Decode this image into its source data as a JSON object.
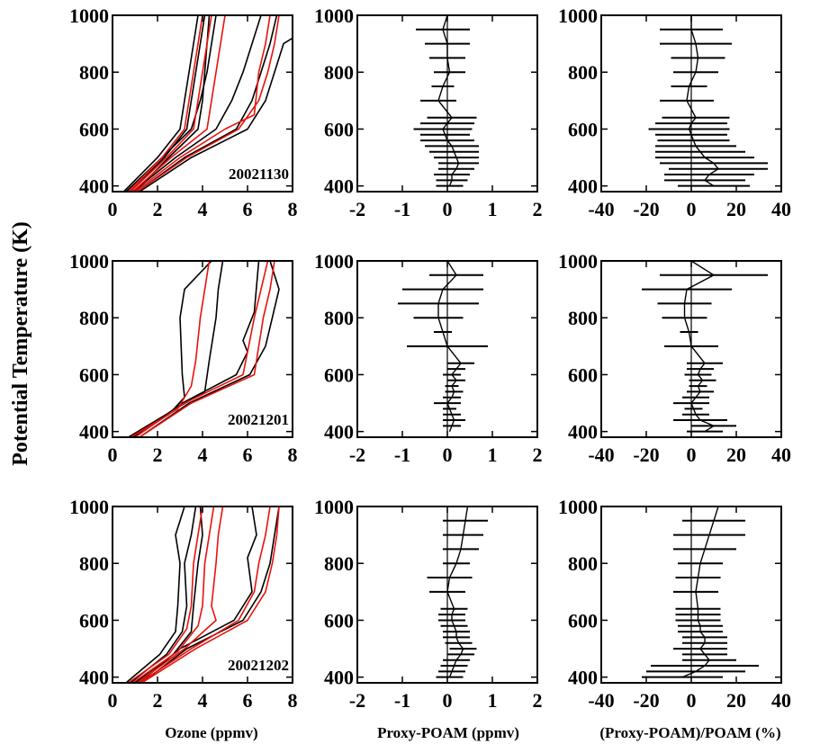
{
  "figure": {
    "ylabel": "Potential Temperature (K)",
    "col_xlabels": [
      "Ozone (ppmv)",
      "Proxy-POAM (ppmv)",
      "(Proxy-POAM)/POAM (%)"
    ],
    "dates": [
      "20021130",
      "20021201",
      "20021202"
    ],
    "colors": {
      "poam_profile": "#000000",
      "proxy_profile": "#e8120c",
      "axis": "#000000"
    }
  },
  "chart_data": [
    {
      "type": "line",
      "row": 0,
      "col": 0,
      "annotation": "20021130",
      "xlabel": "",
      "ylabel": "",
      "xlim": [
        0,
        8
      ],
      "ylim": [
        380,
        1000
      ],
      "xticks": [
        0,
        2,
        4,
        6,
        8
      ],
      "yticks": [
        400,
        600,
        800,
        1000
      ],
      "series": [
        {
          "group": "poam",
          "x": [
            0.5,
            2.0,
            3.0,
            3.2,
            3.4,
            3.6,
            3.8
          ],
          "y": [
            380,
            500,
            600,
            700,
            800,
            900,
            1000
          ]
        },
        {
          "group": "poam",
          "x": [
            0.8,
            2.3,
            3.3,
            3.5,
            3.7,
            3.9,
            4.1
          ],
          "y": [
            380,
            500,
            600,
            700,
            800,
            900,
            1000
          ]
        },
        {
          "group": "poam",
          "x": [
            1.0,
            2.5,
            3.8,
            4.0,
            4.1,
            4.2,
            4.3
          ],
          "y": [
            380,
            500,
            600,
            700,
            800,
            900,
            1000
          ]
        },
        {
          "group": "poam",
          "x": [
            0.6,
            2.2,
            3.5,
            3.9,
            4.2,
            4.4,
            4.6
          ],
          "y": [
            380,
            500,
            600,
            700,
            800,
            900,
            1000
          ]
        },
        {
          "group": "poam",
          "x": [
            0.9,
            2.8,
            4.6,
            5.3,
            5.8,
            6.2,
            6.6
          ],
          "y": [
            380,
            500,
            600,
            700,
            800,
            900,
            1000
          ]
        },
        {
          "group": "poam",
          "x": [
            1.1,
            3.2,
            5.5,
            6.2,
            6.6,
            7.0,
            7.3
          ],
          "y": [
            380,
            500,
            600,
            700,
            800,
            900,
            1000
          ]
        },
        {
          "group": "poam",
          "x": [
            1.2,
            3.5,
            6.0,
            6.8,
            7.2,
            7.6,
            8.0
          ],
          "y": [
            380,
            500,
            600,
            700,
            800,
            900,
            920
          ]
        },
        {
          "group": "proxy",
          "x": [
            0.7,
            2.2,
            3.2,
            3.4,
            3.6,
            3.8,
            4.0
          ],
          "y": [
            380,
            500,
            600,
            700,
            800,
            900,
            1000
          ]
        },
        {
          "group": "proxy",
          "x": [
            0.8,
            2.4,
            3.6,
            3.8,
            4.0,
            4.2,
            4.4
          ],
          "y": [
            380,
            500,
            600,
            700,
            800,
            900,
            1000
          ]
        },
        {
          "group": "proxy",
          "x": [
            0.9,
            2.6,
            4.2,
            4.4,
            4.6,
            4.8,
            5.0
          ],
          "y": [
            380,
            500,
            600,
            700,
            800,
            900,
            1000
          ]
        },
        {
          "group": "proxy",
          "x": [
            1.0,
            3.0,
            5.0,
            6.3,
            6.5,
            6.8,
            7.0
          ],
          "y": [
            380,
            500,
            600,
            650,
            800,
            900,
            1000
          ]
        },
        {
          "group": "proxy",
          "x": [
            1.1,
            3.3,
            5.6,
            6.5,
            6.9,
            7.2,
            7.4
          ],
          "y": [
            380,
            500,
            600,
            700,
            800,
            900,
            1000
          ]
        }
      ]
    },
    {
      "type": "errorbar",
      "row": 0,
      "col": 1,
      "xlim": [
        -2,
        2
      ],
      "ylim": [
        380,
        1000
      ],
      "xticks": [
        -2,
        -1,
        0,
        1,
        2
      ],
      "yticks": [
        400,
        600,
        800,
        1000
      ],
      "y": [
        400,
        420,
        440,
        460,
        480,
        500,
        520,
        540,
        560,
        580,
        600,
        620,
        640,
        700,
        750,
        800,
        850,
        900,
        950,
        1000
      ],
      "x": [
        0.05,
        0.1,
        0.1,
        0.2,
        0.25,
        0.2,
        0.15,
        0.1,
        0.0,
        -0.05,
        -0.1,
        0.0,
        0.1,
        -0.2,
        -0.1,
        0.05,
        0.0,
        0.0,
        -0.1,
        0.0
      ],
      "err": [
        0.3,
        0.35,
        0.4,
        0.4,
        0.45,
        0.5,
        0.55,
        0.6,
        0.6,
        0.55,
        0.65,
        0.6,
        0.55,
        0.4,
        0.25,
        0.35,
        0.4,
        0.5,
        0.6,
        0.0
      ]
    },
    {
      "type": "errorbar",
      "row": 0,
      "col": 2,
      "xlim": [
        -40,
        40
      ],
      "ylim": [
        380,
        1000
      ],
      "xticks": [
        -40,
        -20,
        0,
        20,
        40
      ],
      "yticks": [
        400,
        600,
        800,
        1000
      ],
      "y": [
        400,
        420,
        440,
        460,
        480,
        500,
        520,
        540,
        560,
        580,
        600,
        620,
        640,
        700,
        750,
        800,
        850,
        900,
        950,
        1000
      ],
      "x": [
        10,
        6,
        8,
        12,
        10,
        6,
        4,
        2,
        1,
        0,
        -1,
        0,
        2,
        -2,
        -1,
        2,
        3,
        2,
        0,
        0
      ],
      "err": [
        16,
        18,
        20,
        22,
        24,
        22,
        20,
        18,
        16,
        16,
        18,
        16,
        15,
        12,
        8,
        10,
        12,
        16,
        14,
        0
      ]
    },
    {
      "type": "line",
      "row": 1,
      "col": 0,
      "annotation": "20021201",
      "xlabel": "",
      "ylabel": "",
      "xlim": [
        0,
        8
      ],
      "ylim": [
        380,
        1000
      ],
      "xticks": [
        0,
        2,
        4,
        6,
        8
      ],
      "yticks": [
        400,
        600,
        800,
        1000
      ],
      "series": [
        {
          "group": "poam",
          "x": [
            0.9,
            2.5,
            3.2,
            3.1,
            3.0,
            3.2,
            4.4
          ],
          "y": [
            380,
            460,
            520,
            600,
            800,
            900,
            1000
          ]
        },
        {
          "group": "poam",
          "x": [
            0.7,
            2.8,
            4.1,
            4.3,
            4.6,
            4.7,
            4.9
          ],
          "y": [
            380,
            480,
            540,
            650,
            800,
            900,
            1000
          ]
        },
        {
          "group": "poam",
          "x": [
            1.0,
            3.1,
            5.5,
            6.0,
            5.8,
            6.3,
            6.5
          ],
          "y": [
            380,
            500,
            600,
            680,
            720,
            820,
            1000
          ]
        },
        {
          "group": "poam",
          "x": [
            1.2,
            3.4,
            6.1,
            6.8,
            7.1,
            7.4,
            7.0
          ],
          "y": [
            380,
            500,
            600,
            700,
            800,
            900,
            1000
          ]
        },
        {
          "group": "proxy",
          "x": [
            0.8,
            2.9,
            3.5,
            3.7,
            3.9,
            4.1,
            4.3
          ],
          "y": [
            380,
            480,
            560,
            650,
            800,
            900,
            1000
          ]
        },
        {
          "group": "proxy",
          "x": [
            1.0,
            3.2,
            5.8,
            6.0,
            6.3,
            6.6,
            6.9
          ],
          "y": [
            380,
            500,
            600,
            680,
            800,
            900,
            1000
          ]
        },
        {
          "group": "proxy",
          "x": [
            1.2,
            3.5,
            6.3,
            6.5,
            6.7,
            7.0,
            7.2
          ],
          "y": [
            380,
            500,
            600,
            700,
            800,
            900,
            1000
          ]
        }
      ]
    },
    {
      "type": "errorbar",
      "row": 1,
      "col": 1,
      "xlim": [
        -2,
        2
      ],
      "ylim": [
        380,
        1000
      ],
      "xticks": [
        -2,
        -1,
        0,
        1,
        2
      ],
      "yticks": [
        400,
        600,
        800,
        1000
      ],
      "y": [
        400,
        420,
        440,
        460,
        480,
        500,
        520,
        540,
        560,
        580,
        600,
        620,
        640,
        700,
        750,
        800,
        850,
        900,
        950,
        1000
      ],
      "x": [
        0.05,
        0.1,
        0.15,
        0.1,
        0.05,
        0.0,
        0.1,
        0.15,
        0.1,
        0.2,
        0.1,
        0.2,
        0.3,
        0.0,
        -0.1,
        -0.2,
        -0.2,
        -0.1,
        0.2,
        0.0
      ],
      "err": [
        0.0,
        0.2,
        0.25,
        0.2,
        0.15,
        0.3,
        0.2,
        0.2,
        0.15,
        0.2,
        0.2,
        0.2,
        0.3,
        0.9,
        0.2,
        0.55,
        0.9,
        0.9,
        0.6,
        0.0
      ]
    },
    {
      "type": "errorbar",
      "row": 1,
      "col": 2,
      "xlim": [
        -40,
        40
      ],
      "ylim": [
        380,
        1000
      ],
      "xticks": [
        -40,
        -20,
        0,
        20,
        40
      ],
      "yticks": [
        400,
        600,
        800,
        1000
      ],
      "y": [
        400,
        420,
        440,
        460,
        480,
        500,
        520,
        540,
        560,
        580,
        600,
        620,
        640,
        700,
        750,
        800,
        850,
        900,
        950,
        1000
      ],
      "x": [
        6,
        10,
        4,
        2,
        1,
        0,
        2,
        4,
        3,
        5,
        3,
        4,
        6,
        0,
        -1,
        -3,
        -3,
        -2,
        10,
        0
      ],
      "err": [
        8,
        10,
        12,
        6,
        4,
        8,
        6,
        6,
        4,
        6,
        6,
        6,
        8,
        12,
        4,
        10,
        12,
        20,
        24,
        0
      ]
    },
    {
      "type": "line",
      "row": 2,
      "col": 0,
      "annotation": "20021202",
      "xlabel": "Ozone (ppmv)",
      "ylabel": "",
      "xlim": [
        0,
        8
      ],
      "ylim": [
        380,
        1000
      ],
      "xticks": [
        0,
        2,
        4,
        6,
        8
      ],
      "yticks": [
        400,
        600,
        800,
        1000
      ],
      "series": [
        {
          "group": "poam",
          "x": [
            0.6,
            2.1,
            2.8,
            2.9,
            3.0,
            2.8,
            3.2
          ],
          "y": [
            380,
            480,
            560,
            650,
            800,
            900,
            1000
          ]
        },
        {
          "group": "poam",
          "x": [
            0.8,
            2.4,
            3.1,
            3.3,
            3.2,
            3.5,
            3.7
          ],
          "y": [
            380,
            480,
            560,
            650,
            800,
            900,
            1000
          ]
        },
        {
          "group": "poam",
          "x": [
            1.0,
            2.7,
            3.5,
            3.6,
            3.8,
            4.0,
            3.9
          ],
          "y": [
            380,
            480,
            560,
            650,
            800,
            900,
            1000
          ]
        },
        {
          "group": "poam",
          "x": [
            1.2,
            3.0,
            5.4,
            6.2,
            6.0,
            6.4,
            6.2
          ],
          "y": [
            380,
            500,
            600,
            700,
            820,
            900,
            1000
          ]
        },
        {
          "group": "poam",
          "x": [
            1.3,
            3.3,
            5.8,
            6.6,
            7.0,
            7.2,
            7.4
          ],
          "y": [
            380,
            500,
            600,
            700,
            800,
            900,
            1000
          ]
        },
        {
          "group": "proxy",
          "x": [
            0.7,
            2.5,
            3.3,
            3.5,
            3.6,
            3.8,
            4.0
          ],
          "y": [
            380,
            480,
            570,
            650,
            800,
            900,
            1000
          ]
        },
        {
          "group": "proxy",
          "x": [
            0.9,
            2.9,
            3.8,
            4.0,
            4.1,
            4.3,
            4.5
          ],
          "y": [
            380,
            490,
            580,
            650,
            800,
            900,
            1000
          ]
        },
        {
          "group": "proxy",
          "x": [
            1.1,
            3.2,
            4.6,
            4.4,
            4.6,
            4.7,
            4.9
          ],
          "y": [
            380,
            500,
            600,
            650,
            800,
            900,
            1000
          ]
        },
        {
          "group": "proxy",
          "x": [
            1.2,
            3.5,
            5.6,
            6.3,
            6.5,
            6.8,
            7.0
          ],
          "y": [
            380,
            500,
            600,
            700,
            800,
            900,
            1000
          ]
        },
        {
          "group": "proxy",
          "x": [
            1.3,
            3.7,
            6.0,
            6.8,
            7.1,
            7.3,
            7.4
          ],
          "y": [
            380,
            500,
            600,
            700,
            800,
            900,
            1000
          ]
        }
      ]
    },
    {
      "type": "errorbar",
      "row": 2,
      "col": 1,
      "xlabel": "Proxy-POAM (ppmv)",
      "xlim": [
        -2,
        2
      ],
      "ylim": [
        380,
        1000
      ],
      "xticks": [
        -2,
        -1,
        0,
        1,
        2
      ],
      "yticks": [
        400,
        600,
        800,
        1000
      ],
      "y": [
        400,
        420,
        440,
        460,
        480,
        500,
        520,
        540,
        560,
        580,
        600,
        620,
        640,
        700,
        750,
        800,
        850,
        900,
        950,
        1000
      ],
      "x": [
        0.05,
        0.1,
        0.15,
        0.2,
        0.3,
        0.35,
        0.25,
        0.2,
        0.2,
        0.15,
        0.1,
        0.1,
        0.15,
        0.0,
        0.05,
        0.2,
        0.3,
        0.35,
        0.4,
        0.45
      ],
      "err": [
        0.3,
        0.3,
        0.3,
        0.3,
        0.3,
        0.3,
        0.3,
        0.3,
        0.3,
        0.3,
        0.3,
        0.3,
        0.3,
        0.4,
        0.5,
        0.3,
        0.4,
        0.45,
        0.5,
        0.0
      ]
    },
    {
      "type": "errorbar",
      "row": 2,
      "col": 2,
      "xlabel": "(Proxy-POAM)/POAM (%)",
      "xlim": [
        -40,
        40
      ],
      "ylim": [
        380,
        1000
      ],
      "xticks": [
        -40,
        -20,
        0,
        20,
        40
      ],
      "yticks": [
        400,
        600,
        800,
        1000
      ],
      "y": [
        400,
        420,
        440,
        460,
        480,
        500,
        520,
        540,
        560,
        580,
        600,
        620,
        640,
        700,
        750,
        800,
        850,
        900,
        950,
        1000
      ],
      "x": [
        -4,
        2,
        6,
        8,
        6,
        4,
        6,
        6,
        4,
        4,
        3,
        3,
        3,
        2,
        3,
        4,
        6,
        8,
        10,
        12
      ],
      "err": [
        18,
        22,
        24,
        12,
        10,
        12,
        10,
        10,
        10,
        10,
        10,
        10,
        10,
        10,
        10,
        10,
        14,
        16,
        14,
        0
      ]
    }
  ]
}
